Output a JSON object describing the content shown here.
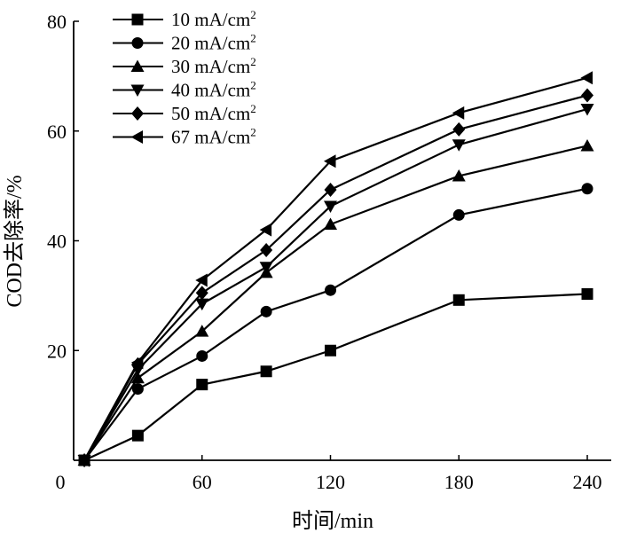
{
  "chart_data": {
    "type": "line",
    "title": "",
    "xlabel": "时间/min",
    "ylabel": "COD去除率/%",
    "xlim": [
      0,
      240
    ],
    "ylim": [
      0,
      80
    ],
    "xticks": [
      0,
      60,
      120,
      180,
      240
    ],
    "yticks": [
      20,
      40,
      60,
      80
    ],
    "x": [
      5,
      30,
      60,
      90,
      120,
      180,
      240
    ],
    "grid": false,
    "legend_position": "top-left",
    "series": [
      {
        "name": "10 mA/cm2",
        "label_main": "10 mA/cm",
        "label_sup": "2",
        "marker": "square",
        "values": [
          0,
          4.5,
          13.8,
          16.2,
          20,
          29.2,
          30.3
        ]
      },
      {
        "name": "20 mA/cm2",
        "label_main": "20 mA/cm",
        "label_sup": "2",
        "marker": "circle",
        "values": [
          0,
          13,
          19,
          27.1,
          31,
          44.7,
          49.5
        ]
      },
      {
        "name": "30 mA/cm2",
        "label_main": "30 mA/cm",
        "label_sup": "2",
        "marker": "triangle-up",
        "values": [
          0,
          15,
          23.5,
          34.2,
          43,
          51.8,
          57.3
        ]
      },
      {
        "name": "40 mA/cm2",
        "label_main": "40 mA/cm",
        "label_sup": "2",
        "marker": "triangle-down",
        "values": [
          0,
          16.5,
          28.5,
          35.2,
          46.3,
          57.5,
          64
        ]
      },
      {
        "name": "50 mA/cm2",
        "label_main": "50 mA/cm",
        "label_sup": "2",
        "marker": "diamond",
        "values": [
          0,
          17.5,
          30.5,
          38.3,
          49.3,
          60.3,
          66.5
        ]
      },
      {
        "name": "67 mA/cm2",
        "label_main": "67 mA/cm",
        "label_sup": "2",
        "marker": "triangle-left",
        "values": [
          0,
          17.8,
          32.8,
          42,
          54.5,
          63.3,
          69.7
        ]
      }
    ]
  }
}
